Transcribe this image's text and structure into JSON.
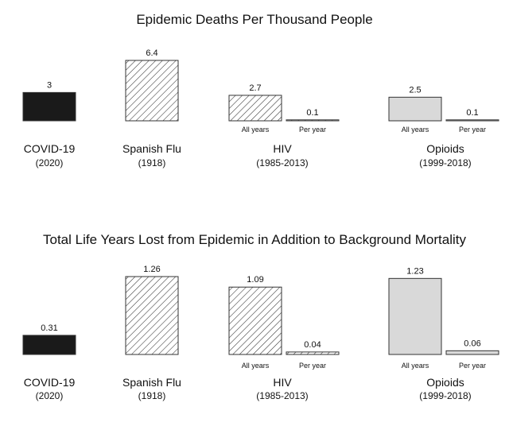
{
  "colors": {
    "covid": "#1a1a1a",
    "opioids": "#d9d9d9",
    "stroke": "#333333",
    "hatch": "#333333",
    "background": "#ffffff"
  },
  "chart_data": [
    {
      "type": "bar",
      "title": "Epidemic Deaths Per Thousand People",
      "ylim": [
        0,
        6.4
      ],
      "groups": [
        {
          "name": "COVID-19",
          "period": "(2020)",
          "fill": "solid-dark",
          "bars": [
            {
              "sublabel": "",
              "value": 3,
              "label": "3"
            }
          ]
        },
        {
          "name": "Spanish Flu",
          "period": "(1918)",
          "fill": "hatch",
          "bars": [
            {
              "sublabel": "",
              "value": 6.4,
              "label": "6.4"
            }
          ]
        },
        {
          "name": "HIV",
          "period": "(1985-2013)",
          "fill": "hatch",
          "bars": [
            {
              "sublabel": "All years",
              "value": 2.7,
              "label": "2.7"
            },
            {
              "sublabel": "Per year",
              "value": 0.1,
              "label": "0.1"
            }
          ]
        },
        {
          "name": "Opioids",
          "period": "(1999-2018)",
          "fill": "solid-light",
          "bars": [
            {
              "sublabel": "All years",
              "value": 2.5,
              "label": "2.5"
            },
            {
              "sublabel": "Per year",
              "value": 0.1,
              "label": "0.1"
            }
          ]
        }
      ]
    },
    {
      "type": "bar",
      "title": "Total Life Years Lost from Epidemic in Addition to Background Mortality",
      "ylim": [
        0,
        1.26
      ],
      "groups": [
        {
          "name": "COVID-19",
          "period": "(2020)",
          "fill": "solid-dark",
          "bars": [
            {
              "sublabel": "",
              "value": 0.31,
              "label": "0.31"
            }
          ]
        },
        {
          "name": "Spanish Flu",
          "period": "(1918)",
          "fill": "hatch",
          "bars": [
            {
              "sublabel": "",
              "value": 1.26,
              "label": "1.26"
            }
          ]
        },
        {
          "name": "HIV",
          "period": "(1985-2013)",
          "fill": "hatch",
          "bars": [
            {
              "sublabel": "All years",
              "value": 1.09,
              "label": "1.09"
            },
            {
              "sublabel": "Per year",
              "value": 0.04,
              "label": "0.04"
            }
          ]
        },
        {
          "name": "Opioids",
          "period": "(1999-2018)",
          "fill": "solid-light",
          "bars": [
            {
              "sublabel": "All years",
              "value": 1.23,
              "label": "1.23"
            },
            {
              "sublabel": "Per year",
              "value": 0.06,
              "label": "0.06"
            }
          ]
        }
      ]
    }
  ]
}
